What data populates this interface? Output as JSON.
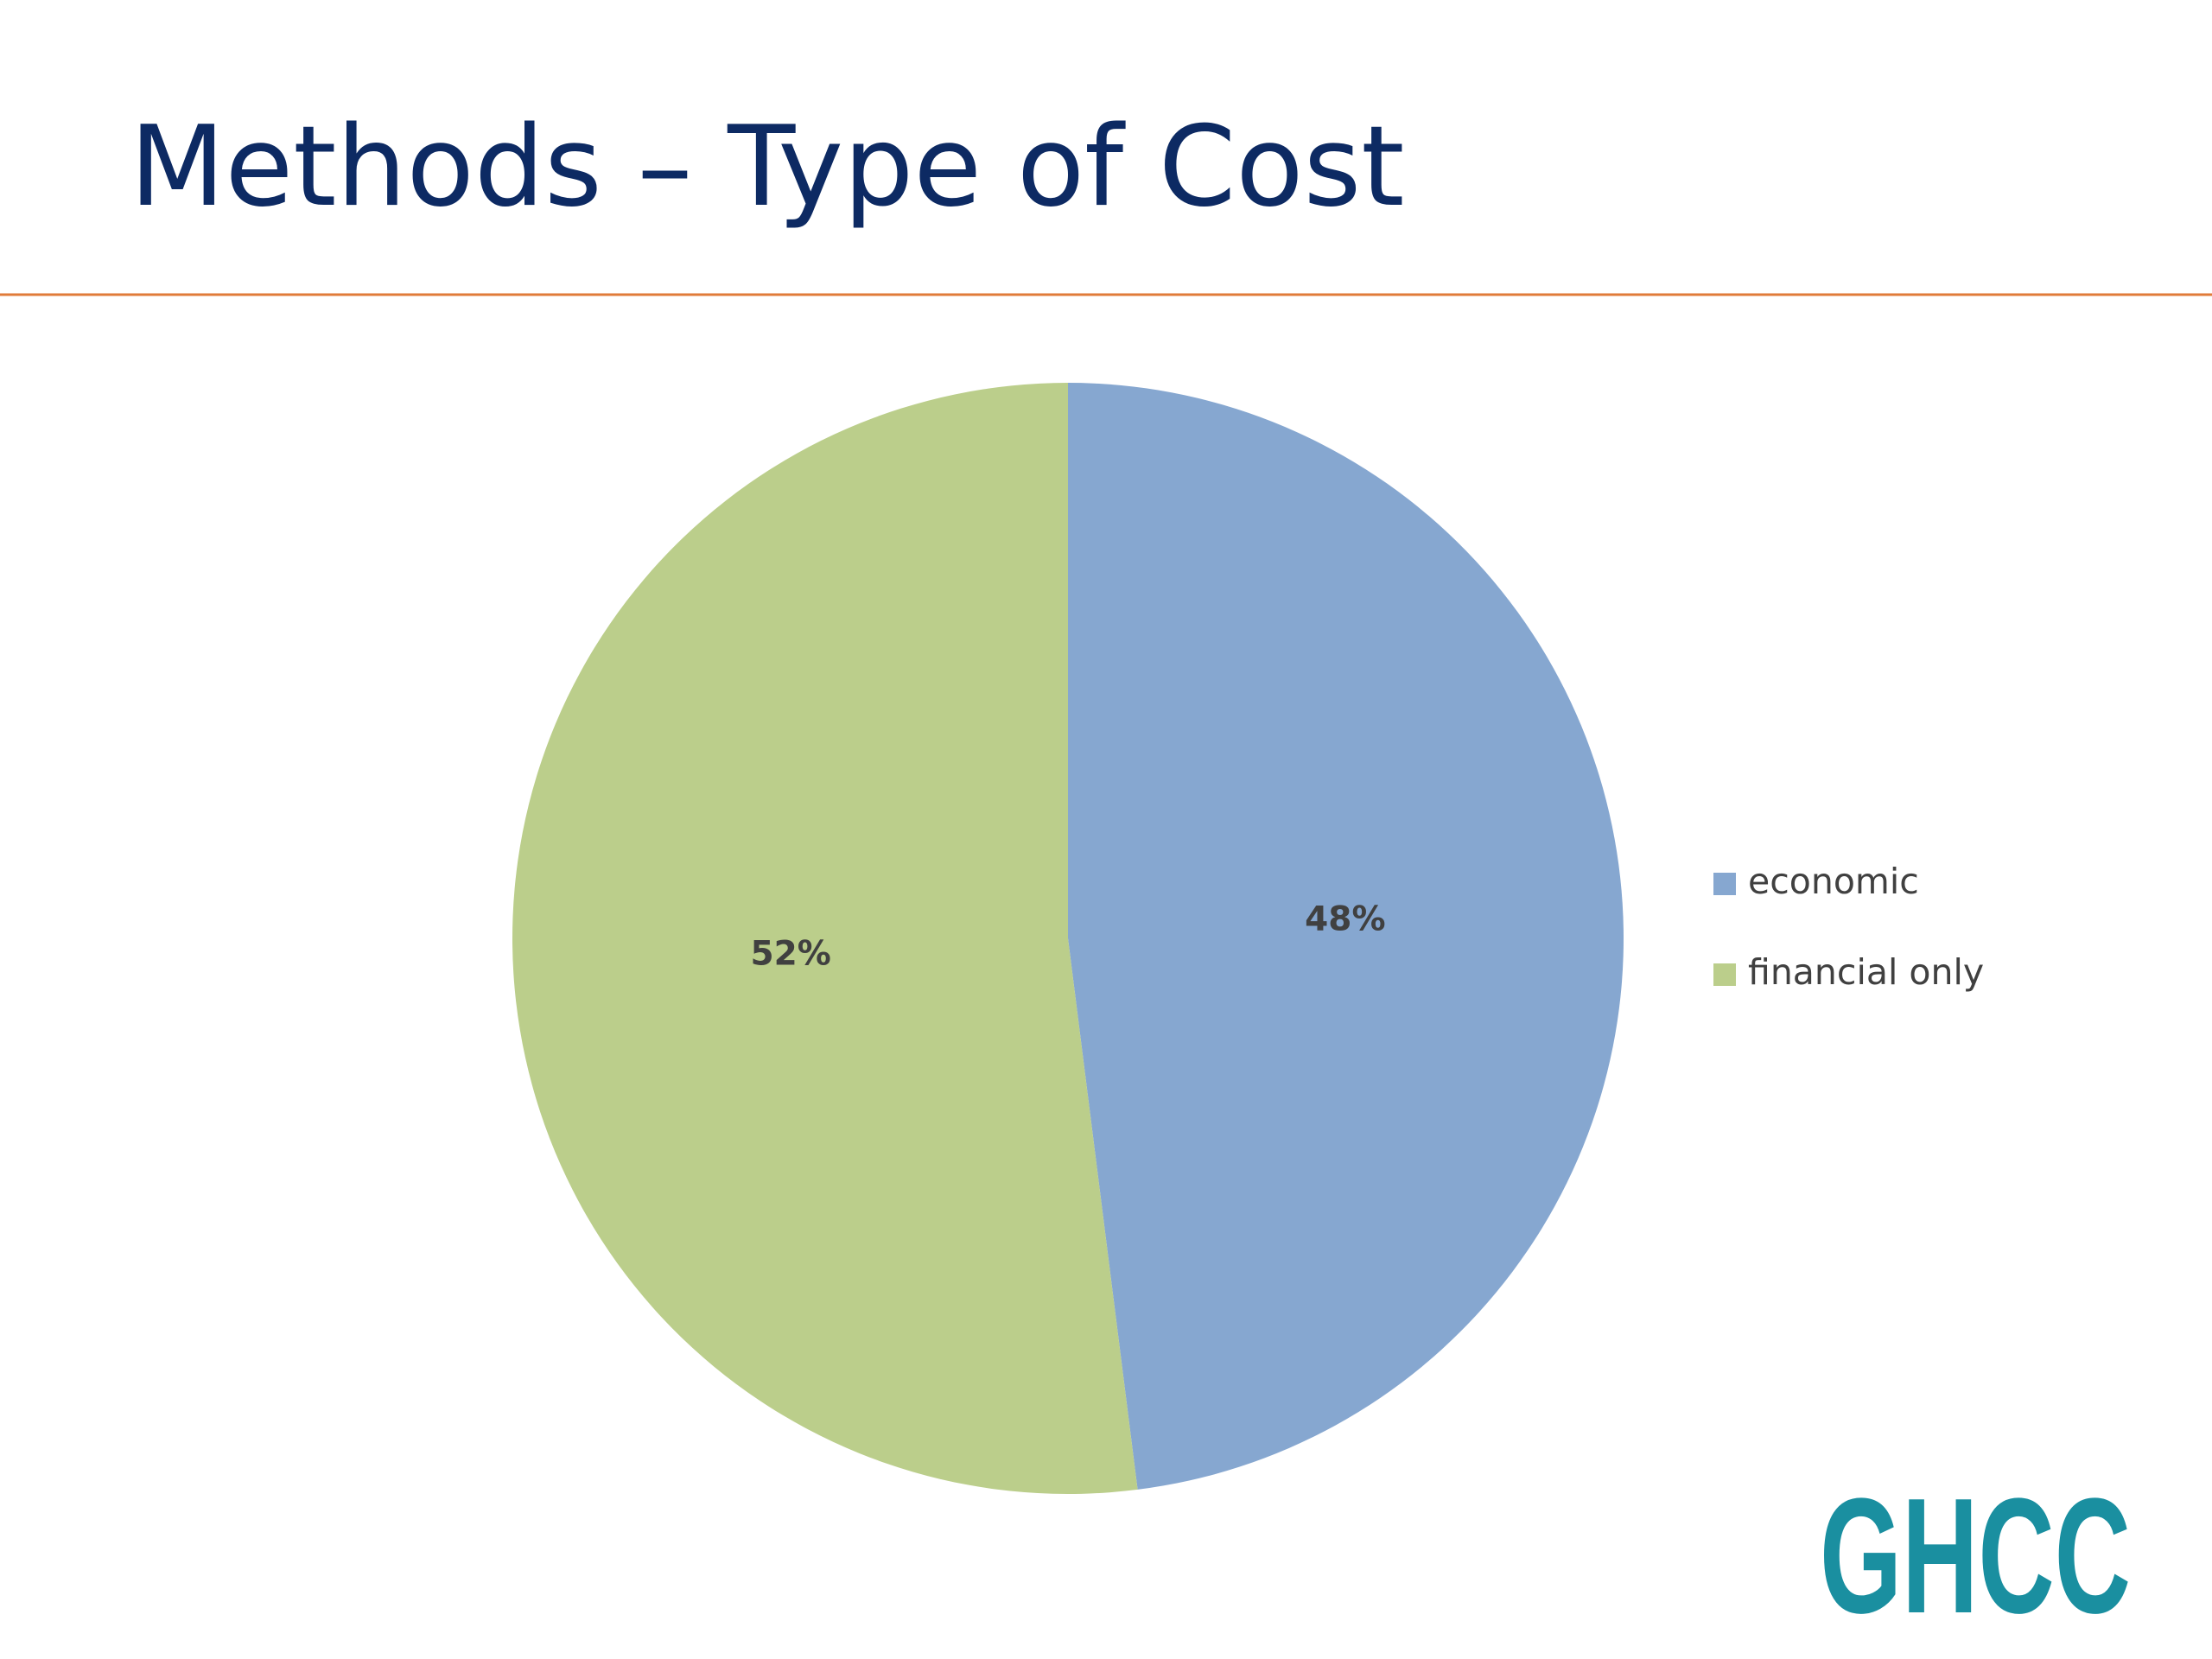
{
  "chart_data": {
    "type": "pie",
    "title": "Methods – Type of Cost",
    "categories": [
      "economic",
      "financial only"
    ],
    "values": [
      48,
      52
    ],
    "value_labels": [
      "48%",
      "52%"
    ],
    "colors": [
      "#86a7d0",
      "#bbce8b"
    ],
    "legend": "right"
  },
  "logo": "GHCC"
}
